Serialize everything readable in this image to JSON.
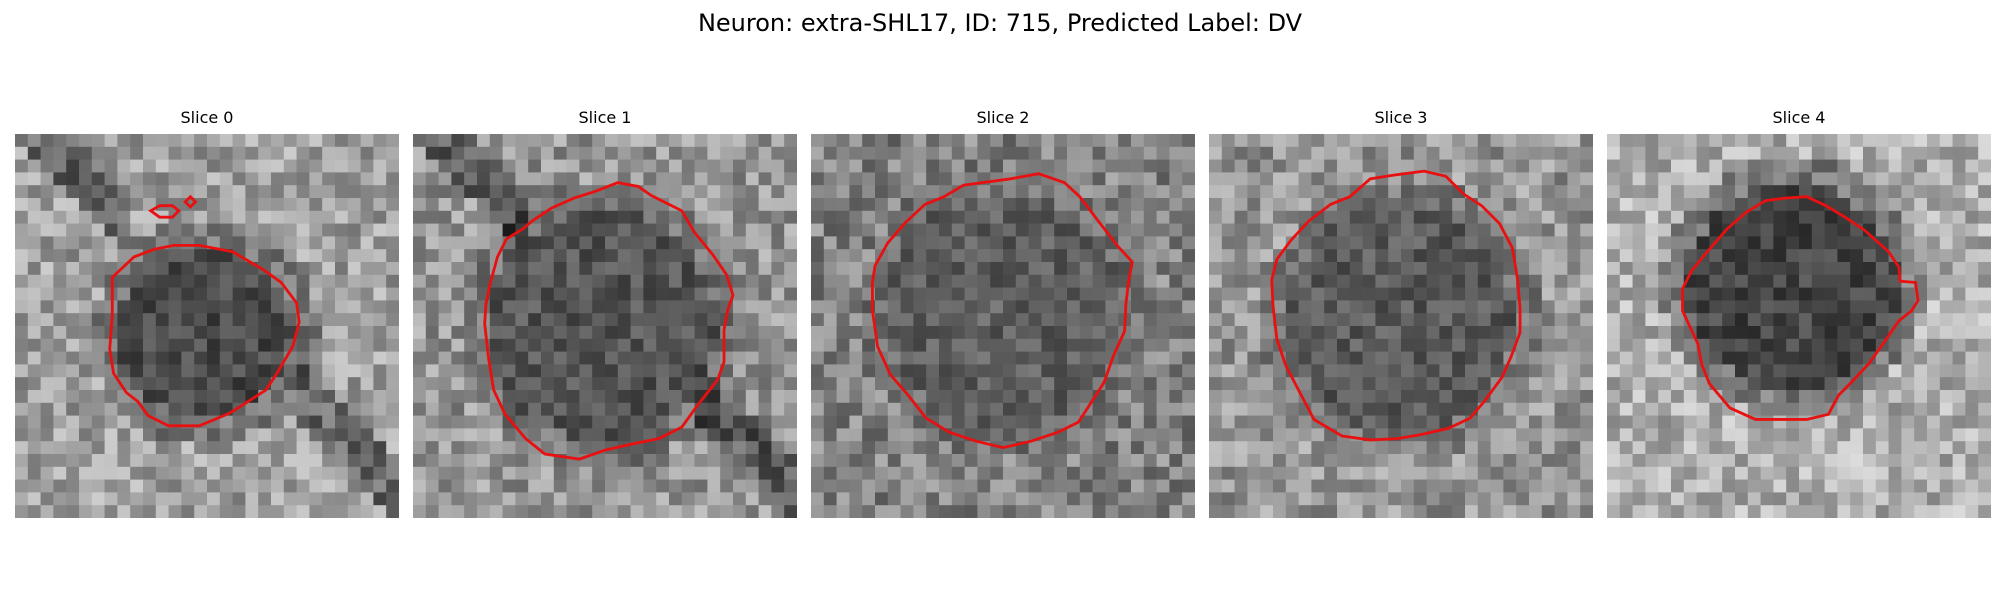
{
  "figure": {
    "title": "Neuron: extra-SHL17, ID: 715, Predicted Label: DV"
  },
  "colors": {
    "contour": "#e81010",
    "background": "#ffffff"
  },
  "slices": [
    {
      "label": "Slice 0"
    },
    {
      "label": "Slice 1"
    },
    {
      "label": "Slice 2"
    },
    {
      "label": "Slice 3"
    },
    {
      "label": "Slice 4"
    }
  ]
}
